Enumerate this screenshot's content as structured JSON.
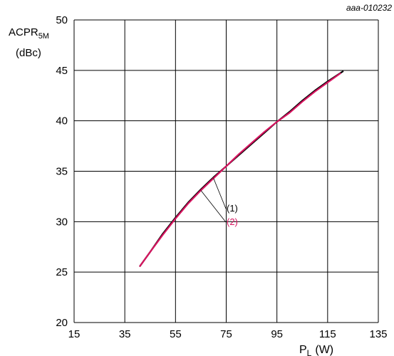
{
  "chart_data": {
    "type": "line",
    "figure_id": "aaa-010232",
    "ylabel": {
      "main": "ACPR",
      "subscript": "5M",
      "unit": "(dBc)"
    },
    "xlabel": {
      "main": "P",
      "subscript": "L",
      "unit": "(W)"
    },
    "xlim": [
      15,
      135
    ],
    "ylim": [
      20,
      50
    ],
    "x_ticks": [
      15,
      35,
      55,
      75,
      95,
      115,
      135
    ],
    "y_ticks": [
      20,
      25,
      30,
      35,
      40,
      45,
      50
    ],
    "grid": true,
    "series": [
      {
        "name": "(1)",
        "color": "#000000",
        "x": [
          41,
          45,
          50,
          55,
          60,
          65,
          70,
          75,
          80,
          85,
          90,
          95,
          100,
          105,
          110,
          115,
          121
        ],
        "y": [
          25.6,
          27.0,
          28.8,
          30.4,
          31.9,
          33.2,
          34.4,
          35.5,
          36.6,
          37.7,
          38.8,
          39.9,
          40.9,
          42.0,
          43.0,
          43.9,
          44.9
        ]
      },
      {
        "name": "(2)",
        "color": "#d6145f",
        "x": [
          41,
          45,
          50,
          55,
          60,
          65,
          70,
          75,
          80,
          85,
          90,
          95,
          100,
          105,
          110,
          115,
          120
        ],
        "y": [
          25.6,
          27.0,
          28.7,
          30.3,
          31.8,
          33.1,
          34.3,
          35.5,
          36.7,
          37.8,
          38.9,
          39.9,
          40.8,
          41.9,
          42.9,
          43.8,
          44.7
        ]
      }
    ]
  }
}
